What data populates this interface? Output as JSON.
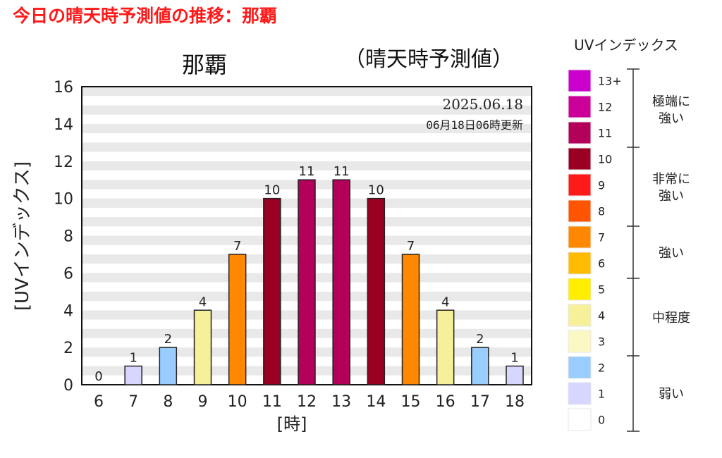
{
  "page": {
    "title": "今日の晴天時予測値の推移：那覇"
  },
  "chart_data": {
    "type": "bar",
    "title": "那覇",
    "subtitle": "（晴天時予測値）",
    "date": "2025.06.18",
    "updated": "06月18日06時更新",
    "xlabel": "[時]",
    "ylabel": "[UVインデックス]",
    "ylim": [
      0,
      16
    ],
    "yticks": [
      0,
      2,
      4,
      6,
      8,
      10,
      12,
      14,
      16
    ],
    "grid": "horizontal bands",
    "categories": [
      "6",
      "7",
      "8",
      "9",
      "10",
      "11",
      "12",
      "13",
      "14",
      "15",
      "16",
      "17",
      "18"
    ],
    "values": [
      0,
      1,
      2,
      4,
      7,
      10,
      11,
      11,
      10,
      7,
      4,
      2,
      1
    ],
    "data_labels": [
      "0",
      "1",
      "2",
      "4",
      "7",
      "10",
      "11",
      "11",
      "10",
      "7",
      "4",
      "2",
      "1"
    ]
  },
  "legend": {
    "title": "UVインデックス",
    "levels": [
      {
        "label": "13+",
        "color": "#cc00cc"
      },
      {
        "label": "12",
        "color": "#cc0099"
      },
      {
        "label": "11",
        "color": "#b30059"
      },
      {
        "label": "10",
        "color": "#990022"
      },
      {
        "label": "9",
        "color": "#ff1a1a"
      },
      {
        "label": "8",
        "color": "#ff5500"
      },
      {
        "label": "7",
        "color": "#ff8800"
      },
      {
        "label": "6",
        "color": "#ffbb00"
      },
      {
        "label": "5",
        "color": "#ffee00"
      },
      {
        "label": "4",
        "color": "#f7f09a"
      },
      {
        "label": "3",
        "color": "#fbf8c4"
      },
      {
        "label": "2",
        "color": "#99ccff"
      },
      {
        "label": "1",
        "color": "#d6d6ff"
      },
      {
        "label": "0",
        "color": "#ffffff"
      }
    ],
    "categories": [
      {
        "label": "極端に強い"
      },
      {
        "label": "非常に強い"
      },
      {
        "label": "強い"
      },
      {
        "label": "中程度"
      },
      {
        "label": "弱い"
      }
    ]
  }
}
